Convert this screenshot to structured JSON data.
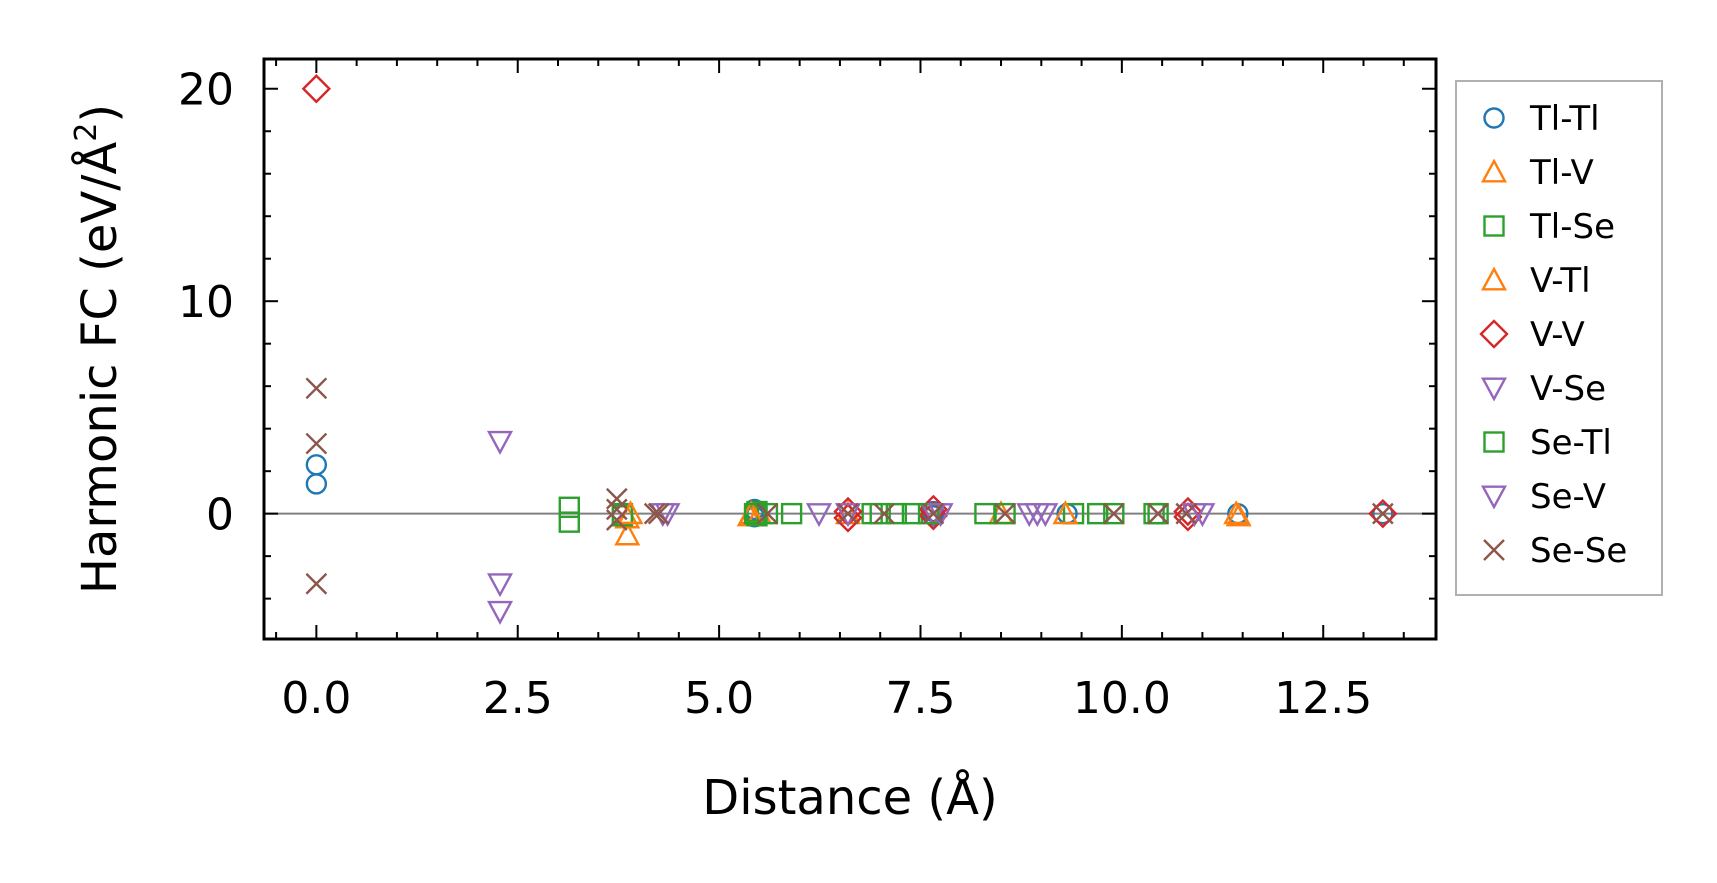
{
  "chart_data": {
    "type": "scatter",
    "xlabel": "Distance (Å)",
    "ylabel_main": "Harmonic FC (eV/Å",
    "ylabel_sup": "2",
    "ylabel_close": ")",
    "xlim": [
      -0.65,
      13.9
    ],
    "ylim": [
      -5.9,
      21.4
    ],
    "x_ticks": [
      0.0,
      2.5,
      5.0,
      7.5,
      10.0,
      12.5
    ],
    "x_tick_labels": [
      "0.0",
      "2.5",
      "5.0",
      "7.5",
      "10.0",
      "12.5"
    ],
    "y_ticks": [
      0,
      10,
      20
    ],
    "y_tick_labels": [
      "0",
      "10",
      "20"
    ],
    "zero_line": true,
    "grid": false,
    "legend_position": "outside-right",
    "series": [
      {
        "name": "Tl-Tl",
        "marker": "circle",
        "color": "#1f77b4",
        "points": [
          [
            0.0,
            1.4
          ],
          [
            0.0,
            2.3
          ],
          [
            5.44,
            0.2
          ],
          [
            5.44,
            -0.15
          ],
          [
            5.45,
            0.05
          ],
          [
            7.66,
            -0.1
          ],
          [
            7.66,
            0.1
          ],
          [
            9.32,
            0.0
          ],
          [
            11.44,
            0.0
          ],
          [
            13.24,
            0.0
          ]
        ]
      },
      {
        "name": "Tl-V",
        "marker": "triangle-up",
        "color": "#ff7f0e",
        "points": [
          [
            3.86,
            -1.0
          ],
          [
            3.86,
            -0.2
          ],
          [
            5.38,
            -0.1
          ],
          [
            5.5,
            0.0
          ],
          [
            8.5,
            0.0
          ],
          [
            11.45,
            -0.1
          ]
        ]
      },
      {
        "name": "Tl-Se",
        "marker": "square",
        "color": "#2ca02c",
        "points": [
          [
            3.14,
            0.3
          ],
          [
            3.14,
            -0.4
          ],
          [
            3.8,
            0.0
          ],
          [
            3.8,
            -0.1
          ],
          [
            5.47,
            0.1
          ],
          [
            5.47,
            -0.1
          ],
          [
            5.6,
            0.0
          ],
          [
            5.9,
            0.0
          ],
          [
            6.9,
            0.0
          ],
          [
            7.2,
            0.0
          ],
          [
            7.4,
            0.0
          ],
          [
            8.3,
            0.0
          ],
          [
            9.4,
            0.0
          ],
          [
            9.7,
            0.0
          ],
          [
            10.4,
            0.0
          ]
        ]
      },
      {
        "name": "V-Tl",
        "marker": "triangle-up",
        "color": "#ff7f0e",
        "points": [
          [
            3.9,
            0.0
          ],
          [
            5.4,
            0.0
          ],
          [
            6.6,
            0.0
          ],
          [
            9.3,
            0.0
          ],
          [
            11.42,
            0.0
          ]
        ]
      },
      {
        "name": "V-V",
        "marker": "diamond",
        "color": "#d62728",
        "points": [
          [
            0.0,
            20.0
          ],
          [
            6.6,
            0.1
          ],
          [
            6.6,
            -0.2
          ],
          [
            7.66,
            0.2
          ],
          [
            7.66,
            -0.1
          ],
          [
            10.82,
            0.1
          ],
          [
            10.82,
            -0.15
          ],
          [
            13.24,
            0.0
          ]
        ]
      },
      {
        "name": "V-Se",
        "marker": "triangle-down",
        "color": "#9467bd",
        "points": [
          [
            2.28,
            3.4
          ],
          [
            2.28,
            -3.3
          ],
          [
            2.28,
            -4.6
          ],
          [
            4.36,
            0.0
          ],
          [
            6.24,
            0.0
          ],
          [
            6.6,
            0.0
          ],
          [
            7.66,
            0.0
          ],
          [
            8.95,
            0.0
          ],
          [
            9.05,
            0.0
          ],
          [
            10.9,
            0.0
          ]
        ]
      },
      {
        "name": "Se-Tl",
        "marker": "square",
        "color": "#2ca02c",
        "points": [
          [
            5.44,
            0.0
          ],
          [
            7.0,
            0.0
          ],
          [
            7.6,
            0.0
          ],
          [
            8.55,
            0.0
          ],
          [
            9.9,
            0.0
          ],
          [
            10.45,
            0.0
          ]
        ]
      },
      {
        "name": "Se-V",
        "marker": "triangle-down",
        "color": "#9467bd",
        "points": [
          [
            4.3,
            0.0
          ],
          [
            7.75,
            0.0
          ],
          [
            8.85,
            0.0
          ],
          [
            11.0,
            0.0
          ]
        ]
      },
      {
        "name": "Se-Se",
        "marker": "x",
        "color": "#8c564b",
        "points": [
          [
            0.0,
            5.9
          ],
          [
            0.0,
            3.3
          ],
          [
            0.0,
            -3.3
          ],
          [
            3.73,
            0.7
          ],
          [
            3.73,
            0.2
          ],
          [
            3.73,
            -0.3
          ],
          [
            4.2,
            0.0
          ],
          [
            4.25,
            0.0
          ],
          [
            5.6,
            0.0
          ],
          [
            6.6,
            0.0
          ],
          [
            7.05,
            0.0
          ],
          [
            7.66,
            0.0
          ],
          [
            8.55,
            0.0
          ],
          [
            9.9,
            0.0
          ],
          [
            10.45,
            0.0
          ],
          [
            10.8,
            0.0
          ],
          [
            13.24,
            0.0
          ]
        ]
      }
    ]
  }
}
